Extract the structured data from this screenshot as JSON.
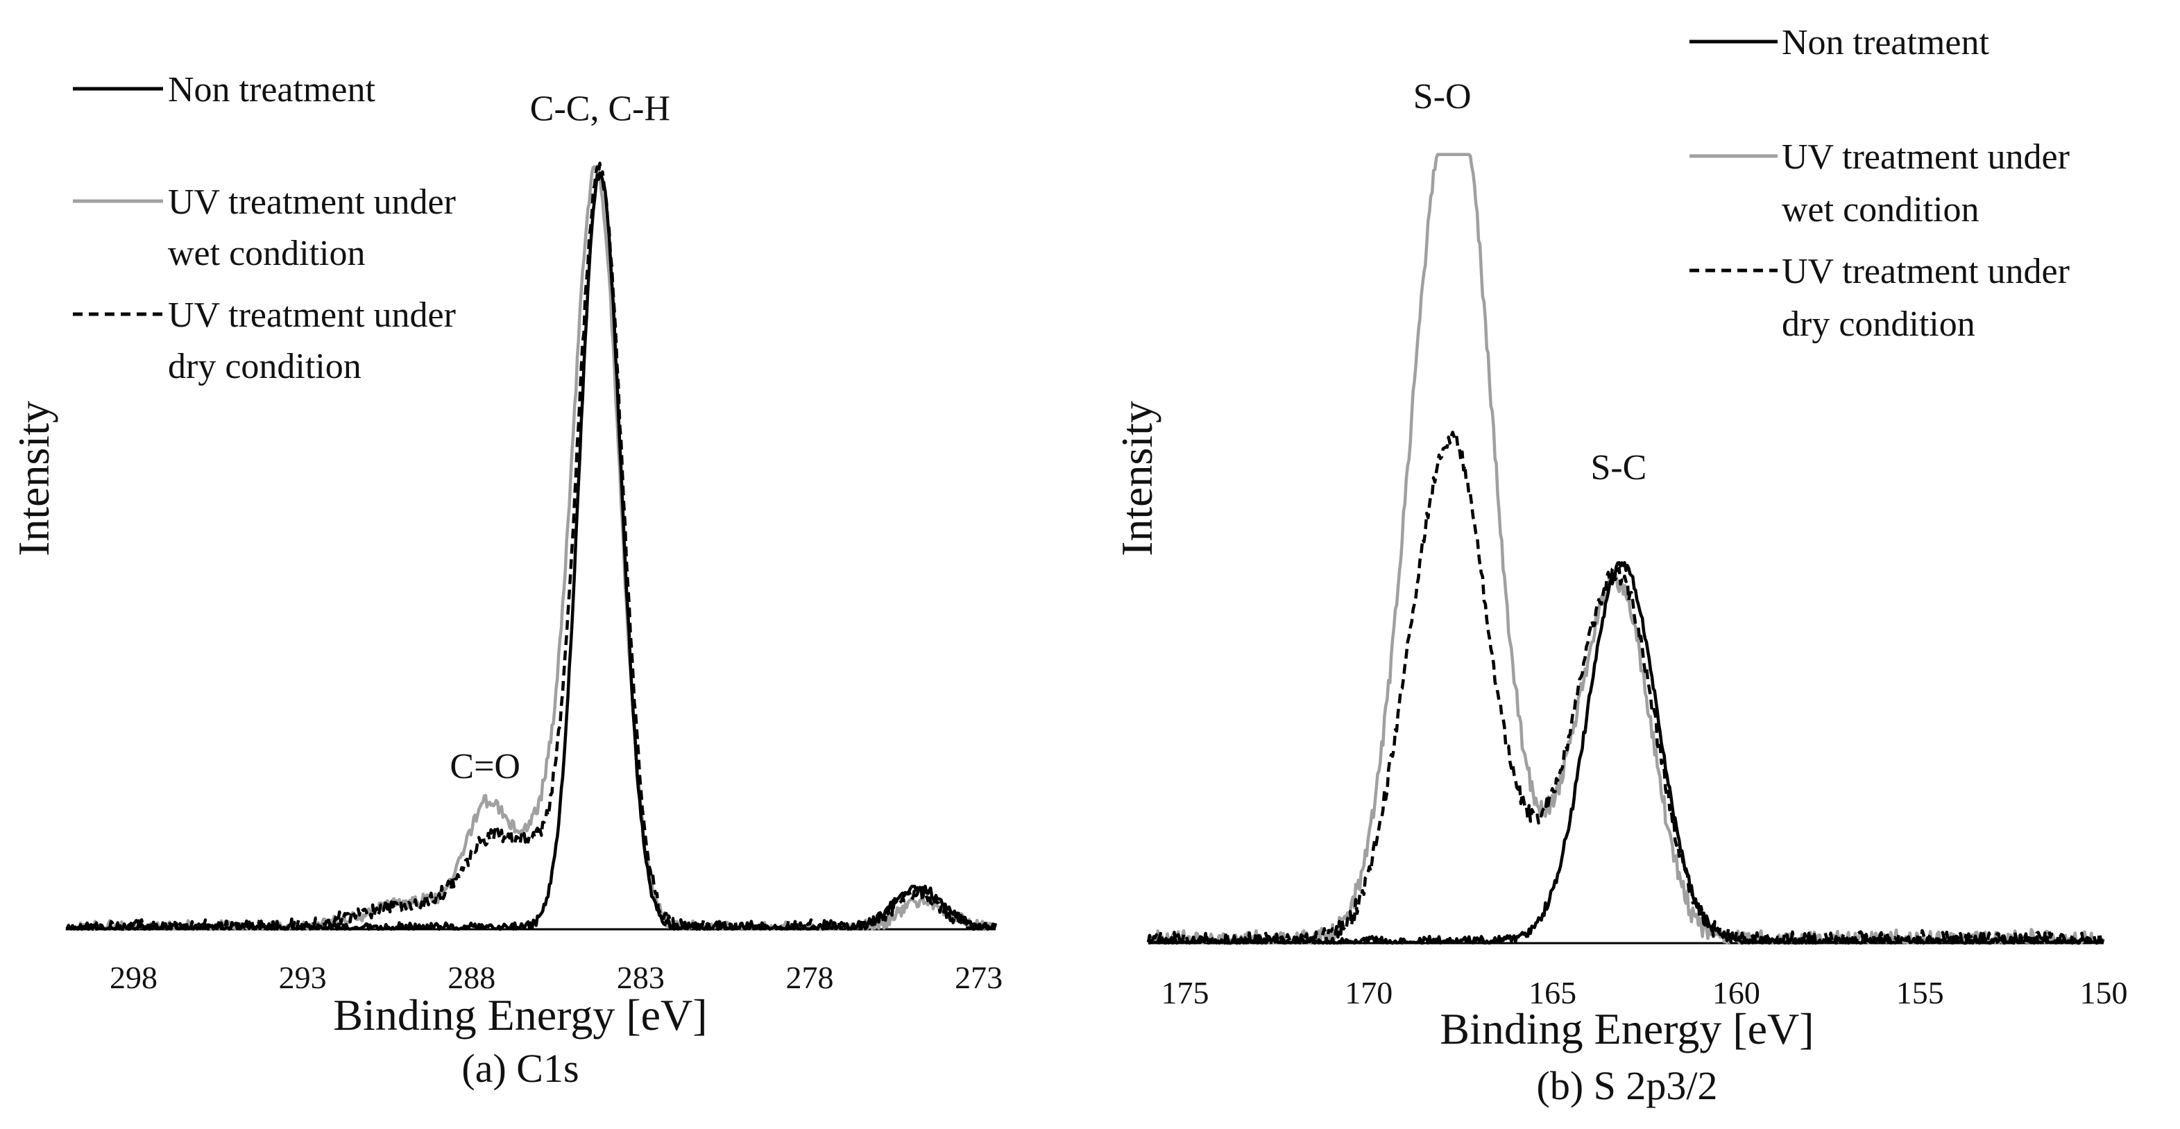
{
  "colors": {
    "non_treatment": "#000000",
    "wet": "#a0a0a0",
    "dry": "#000000",
    "axis": "#000000",
    "text": "#111111"
  },
  "chart_data": [
    {
      "type": "line",
      "panel_id": "c1s",
      "caption": "(a) C1s",
      "xlabel": "Binding Energy [eV]",
      "ylabel": "Intensity",
      "xlim": [
        300,
        272.5
      ],
      "ylim": [
        0,
        1
      ],
      "x_reversed": true,
      "grid": false,
      "xticks": [
        298,
        293,
        288,
        283,
        278,
        273
      ],
      "tick_labels": [
        "298",
        "293",
        "288",
        "283",
        "278",
        "273"
      ],
      "legend_position": "top-left",
      "annotations": [
        {
          "text": "C-C, C-H",
          "x": 284.2,
          "y": 1.07
        },
        {
          "text": "C=O",
          "x": 287.6,
          "y": 0.2
        }
      ],
      "series": [
        {
          "key": "non",
          "name": "Non treatment",
          "style": "solid-black",
          "peaks": [
            {
              "center": 284.2,
              "height": 1.0,
              "width": 0.62
            },
            {
              "center": 274.8,
              "height": 0.055,
              "width": 0.7
            }
          ],
          "noise": 0.006,
          "baseline_noise_below": 0,
          "seed": 11
        },
        {
          "key": "wet",
          "name": "UV treatment under wet condition",
          "style": "solid-gray",
          "peaks": [
            {
              "center": 284.3,
              "height": 0.98,
              "width": 0.68
            },
            {
              "center": 285.9,
              "height": 0.12,
              "width": 0.9
            },
            {
              "center": 287.6,
              "height": 0.135,
              "width": 0.6
            },
            {
              "center": 289.6,
              "height": 0.035,
              "width": 1.4
            },
            {
              "center": 274.6,
              "height": 0.035,
              "width": 0.7
            }
          ],
          "noise": 0.008,
          "seed": 23
        },
        {
          "key": "dry",
          "name": "UV treatment under dry condition",
          "style": "dashed-black",
          "peaks": [
            {
              "center": 284.2,
              "height": 0.98,
              "width": 0.66
            },
            {
              "center": 286.0,
              "height": 0.09,
              "width": 1.1
            },
            {
              "center": 287.6,
              "height": 0.08,
              "width": 0.8
            },
            {
              "center": 290.0,
              "height": 0.03,
              "width": 1.3
            },
            {
              "center": 274.8,
              "height": 0.045,
              "width": 0.7
            }
          ],
          "noise": 0.009,
          "seed": 37
        }
      ]
    },
    {
      "type": "line",
      "panel_id": "s2p",
      "caption": "(b) S 2p3/2",
      "xlabel": "Binding Energy [eV]",
      "ylabel": "Intensity",
      "xlim": [
        176,
        150
      ],
      "ylim": [
        0,
        1
      ],
      "x_reversed": true,
      "grid": false,
      "xticks": [
        175,
        170,
        165,
        160,
        155,
        150
      ],
      "tick_labels": [
        "175",
        "170",
        "165",
        "160",
        "155",
        "150"
      ],
      "legend_position": "top-right",
      "annotations": [
        {
          "text": "S-O",
          "x": 168.0,
          "y": 1.08
        },
        {
          "text": "S-C",
          "x": 163.2,
          "y": 0.6
        }
      ],
      "series": [
        {
          "key": "non",
          "name": "Non treatment",
          "style": "solid-black",
          "peaks": [
            {
              "center": 163.1,
              "height": 0.49,
              "width": 0.95
            }
          ],
          "noise": 0.006,
          "seed": 5
        },
        {
          "key": "wet",
          "name": "UV treatment under wet condition",
          "style": "solid-gray",
          "peaks": [
            {
              "center": 168.2,
              "height": 0.78,
              "width": 0.95
            },
            {
              "center": 167.2,
              "height": 0.55,
              "width": 0.75
            },
            {
              "center": 166.0,
              "height": 0.1,
              "width": 0.6
            },
            {
              "center": 163.2,
              "height": 0.45,
              "width": 0.9
            },
            {
              "center": 164.6,
              "height": 0.1,
              "width": 0.7
            }
          ],
          "noise": 0.012,
          "seed": 61
        },
        {
          "key": "dry",
          "name": "UV treatment under dry condition",
          "style": "dashed-black",
          "peaks": [
            {
              "center": 168.3,
              "height": 0.44,
              "width": 0.95
            },
            {
              "center": 167.3,
              "height": 0.33,
              "width": 0.75
            },
            {
              "center": 166.0,
              "height": 0.08,
              "width": 0.6
            },
            {
              "center": 163.2,
              "height": 0.46,
              "width": 1.0
            },
            {
              "center": 164.7,
              "height": 0.08,
              "width": 0.8
            }
          ],
          "noise": 0.011,
          "seed": 79
        }
      ]
    }
  ]
}
